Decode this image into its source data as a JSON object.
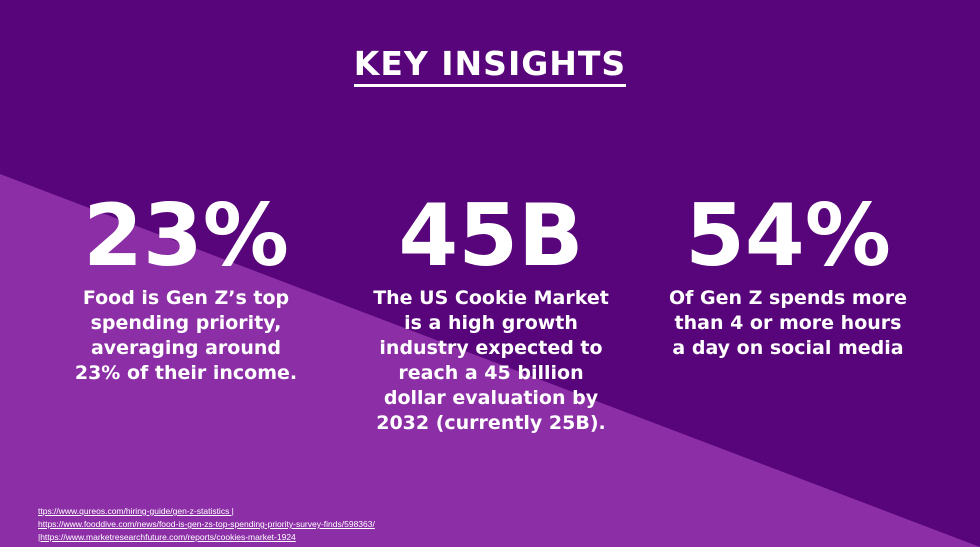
{
  "colors": {
    "background_dark": "#58047a",
    "background_light": "#8c2fa6",
    "text": "#ffffff"
  },
  "header": {
    "title": "KEY INSIGHTS"
  },
  "stats": [
    {
      "value": "23%",
      "description": "Food is Gen Z’s top spending priority, averaging around 23% of their income."
    },
    {
      "value": "45B",
      "description": "The US Cookie Market is a high growth industry expected to reach a 45 billion dollar evaluation by 2032 (currently 25B)."
    },
    {
      "value": "54%",
      "description": "Of Gen Z spends more than 4 or more hours a day on social media"
    }
  ],
  "sources": [
    "ttps://www.qureos.com/hiring-guide/gen-z-statistics |",
    "https://www.fooddive.com/news/food-is-gen-zs-top-spending-priority-survey-finds/598363/",
    "|https://www.marketresearchfuture.com/reports/cookies-market-1924"
  ]
}
